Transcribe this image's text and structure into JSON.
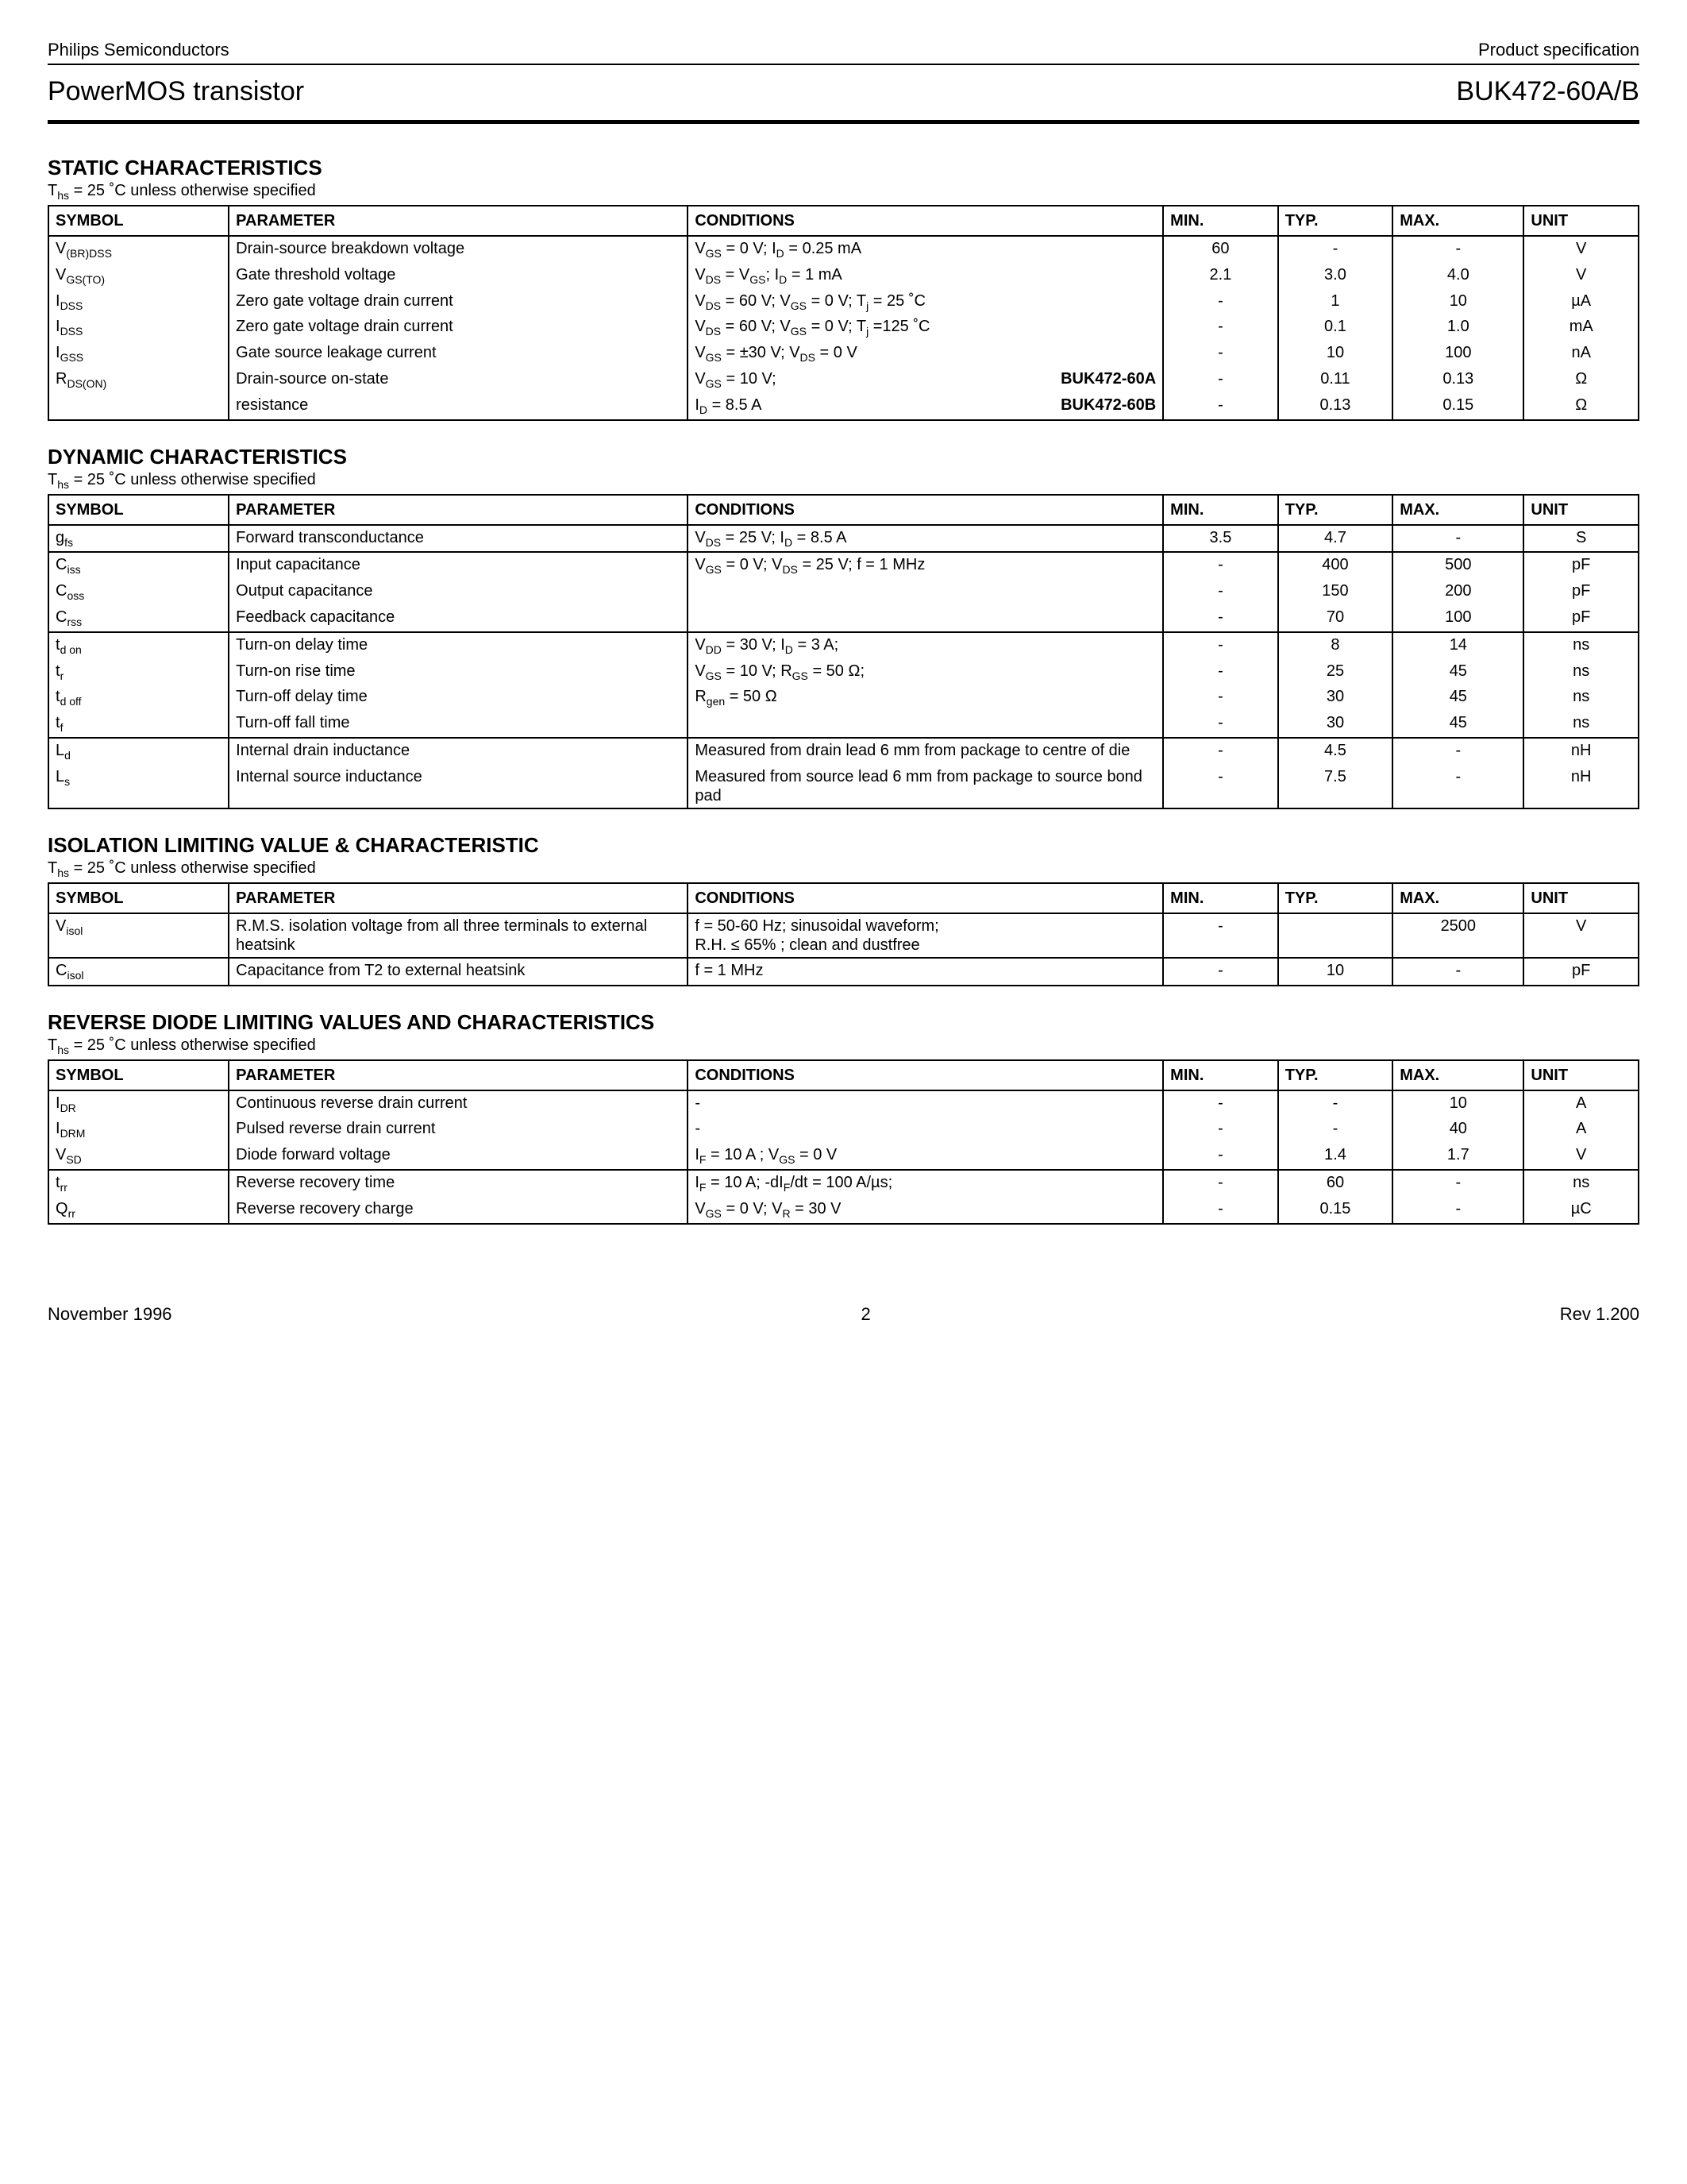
{
  "header": {
    "company": "Philips Semiconductors",
    "doctype": "Product specification",
    "product_desc": "PowerMOS transistor",
    "part_number": "BUK472-60A/B"
  },
  "temp_note": "T",
  "temp_note_sub": "hs",
  "temp_note_rest": " = 25 ˚C unless otherwise specified",
  "columns": {
    "symbol": "SYMBOL",
    "parameter": "PARAMETER",
    "conditions": "CONDITIONS",
    "min": "MIN.",
    "typ": "TYP.",
    "max": "MAX.",
    "unit": "UNIT"
  },
  "sections": [
    {
      "title": "STATIC CHARACTERISTICS",
      "groups": [
        {
          "rows": [
            {
              "sym": "V<sub>(BR)DSS</sub>",
              "param": "Drain-source breakdown voltage",
              "cond": "V<sub>GS</sub> = 0 V; I<sub>D</sub> = 0.25 mA",
              "min": "60",
              "typ": "-",
              "max": "-",
              "unit": "V"
            },
            {
              "sym": "V<sub>GS(TO)</sub>",
              "param": "Gate threshold voltage",
              "cond": "V<sub>DS</sub> = V<sub>GS</sub>; I<sub>D</sub> = 1 mA",
              "min": "2.1",
              "typ": "3.0",
              "max": "4.0",
              "unit": "V"
            },
            {
              "sym": "I<sub>DSS</sub>",
              "param": "Zero gate voltage drain current",
              "cond": "V<sub>DS</sub> = 60 V; V<sub>GS</sub> = 0 V; T<sub>j</sub> = 25 ˚C",
              "min": "-",
              "typ": "1",
              "max": "10",
              "unit": "µA"
            },
            {
              "sym": "I<sub>DSS</sub>",
              "param": "Zero gate voltage drain current",
              "cond": "V<sub>DS</sub> = 60 V; V<sub>GS</sub> = 0 V; T<sub>j</sub> =125 ˚C",
              "min": "-",
              "typ": "0.1",
              "max": "1.0",
              "unit": "mA"
            },
            {
              "sym": "I<sub>GSS</sub>",
              "param": "Gate source leakage current",
              "cond": "V<sub>GS</sub> = ±30 V; V<sub>DS</sub> = 0 V",
              "min": "-",
              "typ": "10",
              "max": "100",
              "unit": "nA"
            },
            {
              "sym": "R<sub>DS(ON)</sub>",
              "param": "Drain-source on-state",
              "cond_split": {
                "left": "V<sub>GS</sub> = 10 V;",
                "right": "BUK472-60A"
              },
              "min": "-",
              "typ": "0.11",
              "max": "0.13",
              "unit": "Ω"
            },
            {
              "sym": "",
              "param": "resistance",
              "cond_split": {
                "left": "I<sub>D</sub> = 8.5 A",
                "right": "BUK472-60B"
              },
              "min": "-",
              "typ": "0.13",
              "max": "0.15",
              "unit": "Ω"
            }
          ]
        }
      ]
    },
    {
      "title": "DYNAMIC CHARACTERISTICS",
      "groups": [
        {
          "rows": [
            {
              "sym": "g<sub>fs</sub>",
              "param": "Forward transconductance",
              "cond": "V<sub>DS</sub> = 25 V; I<sub>D</sub> = 8.5 A",
              "min": "3.5",
              "typ": "4.7",
              "max": "-",
              "unit": "S"
            }
          ]
        },
        {
          "rows": [
            {
              "sym": "C<sub>iss</sub>",
              "param": "Input capacitance",
              "cond": "V<sub>GS</sub> = 0 V; V<sub>DS</sub> = 25 V; f = 1 MHz",
              "min": "-",
              "typ": "400",
              "max": "500",
              "unit": "pF"
            },
            {
              "sym": "C<sub>oss</sub>",
              "param": "Output capacitance",
              "cond": "",
              "min": "-",
              "typ": "150",
              "max": "200",
              "unit": "pF"
            },
            {
              "sym": "C<sub>rss</sub>",
              "param": "Feedback capacitance",
              "cond": "",
              "min": "-",
              "typ": "70",
              "max": "100",
              "unit": "pF"
            }
          ]
        },
        {
          "rows": [
            {
              "sym": "t<sub>d on</sub>",
              "param": "Turn-on delay time",
              "cond": "V<sub>DD</sub> = 30 V; I<sub>D</sub> = 3 A;",
              "min": "-",
              "typ": "8",
              "max": "14",
              "unit": "ns"
            },
            {
              "sym": "t<sub>r</sub>",
              "param": "Turn-on rise time",
              "cond": "V<sub>GS</sub> = 10 V; R<sub>GS</sub> = 50 Ω;",
              "min": "-",
              "typ": "25",
              "max": "45",
              "unit": "ns"
            },
            {
              "sym": "t<sub>d off</sub>",
              "param": "Turn-off delay time",
              "cond": "R<sub>gen</sub> = 50 Ω",
              "min": "-",
              "typ": "30",
              "max": "45",
              "unit": "ns"
            },
            {
              "sym": "t<sub>f</sub>",
              "param": "Turn-off fall time",
              "cond": "",
              "min": "-",
              "typ": "30",
              "max": "45",
              "unit": "ns"
            }
          ]
        },
        {
          "rows": [
            {
              "sym": "L<sub>d</sub>",
              "param": "Internal drain inductance",
              "cond": "Measured from drain lead 6 mm from package to centre of die",
              "min": "-",
              "typ": "4.5",
              "max": "-",
              "unit": "nH"
            },
            {
              "sym": "L<sub>s</sub>",
              "param": "Internal source inductance",
              "cond": "Measured from source lead 6 mm from package to source bond pad",
              "min": "-",
              "typ": "7.5",
              "max": "-",
              "unit": "nH"
            }
          ]
        }
      ]
    },
    {
      "title": "ISOLATION LIMITING VALUE & CHARACTERISTIC",
      "groups": [
        {
          "rows": [
            {
              "sym": "V<sub>isol</sub>",
              "param": "R.M.S. isolation voltage from all three terminals to external heatsink",
              "cond": "f = 50-60 Hz; sinusoidal waveform;<br>R.H. ≤ 65% ; clean and dustfree",
              "min": "-",
              "typ": "",
              "max": "2500",
              "unit": "V"
            }
          ]
        },
        {
          "rows": [
            {
              "sym": "C<sub>isol</sub>",
              "param": "Capacitance from T2 to external heatsink",
              "cond": "f = 1 MHz",
              "min": "-",
              "typ": "10",
              "max": "-",
              "unit": "pF"
            }
          ]
        }
      ]
    },
    {
      "title": "REVERSE DIODE LIMITING VALUES AND CHARACTERISTICS",
      "groups": [
        {
          "rows": [
            {
              "sym": "I<sub>DR</sub>",
              "param": "Continuous reverse drain current",
              "cond": "-",
              "min": "-",
              "typ": "-",
              "max": "10",
              "unit": "A"
            },
            {
              "sym": "I<sub>DRM</sub>",
              "param": "Pulsed reverse drain current",
              "cond": "-",
              "min": "-",
              "typ": "-",
              "max": "40",
              "unit": "A"
            },
            {
              "sym": "V<sub>SD</sub>",
              "param": "Diode forward voltage",
              "cond": "I<sub>F</sub> = 10 A ; V<sub>GS</sub> = 0 V",
              "min": "-",
              "typ": "1.4",
              "max": "1.7",
              "unit": "V"
            }
          ]
        },
        {
          "rows": [
            {
              "sym": "t<sub>rr</sub>",
              "param": "Reverse recovery time",
              "cond": "I<sub>F</sub> = 10 A; -dI<sub>F</sub>/dt = 100 A/µs;",
              "min": "-",
              "typ": "60",
              "max": "-",
              "unit": "ns"
            },
            {
              "sym": "Q<sub>rr</sub>",
              "param": "Reverse recovery charge",
              "cond": "V<sub>GS</sub> = 0 V; V<sub>R</sub> = 30 V",
              "min": "-",
              "typ": "0.15",
              "max": "-",
              "unit": "µC"
            }
          ]
        }
      ]
    }
  ],
  "footer": {
    "date": "November 1996",
    "page": "2",
    "rev": "Rev 1.200"
  }
}
